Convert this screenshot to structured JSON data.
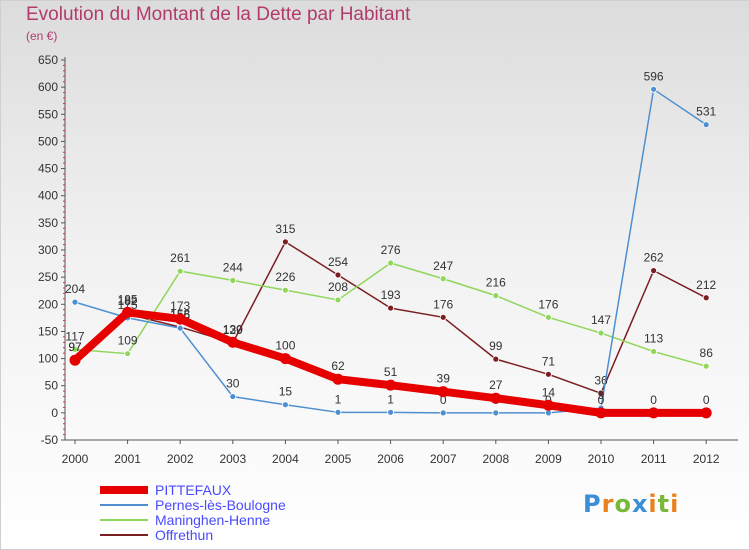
{
  "title": "Evolution du Montant de la Dette par Habitant",
  "subtitle": "(en €)",
  "logo_text": "Proxiti",
  "logo_colors": [
    "#3a8fd6",
    "#e8821e",
    "#7ab83a",
    "#3a8fd6",
    "#e8821e",
    "#7ab83a",
    "#e8821e"
  ],
  "chart_data": {
    "type": "line",
    "title": "Evolution du Montant de la Dette par Habitant",
    "subtitle": "(en €)",
    "x": [
      "2000",
      "2001",
      "2002",
      "2003",
      "2004",
      "2005",
      "2006",
      "2007",
      "2008",
      "2009",
      "2010",
      "2011",
      "2012"
    ],
    "ylim": [
      -50,
      650
    ],
    "yticks": [
      "-50",
      "0",
      "50",
      "100",
      "150",
      "200",
      "250",
      "300",
      "350",
      "400",
      "450",
      "500",
      "550",
      "600",
      "650"
    ],
    "grid": false,
    "legend_position": "bottom-left",
    "series": [
      {
        "name": "Offrethun",
        "color": "#7a1e22",
        "values": [
          97,
          182,
          158,
          129,
          315,
          254,
          193,
          176,
          99,
          71,
          36,
          262,
          212
        ],
        "labels": [
          "97",
          "182",
          "158",
          "129",
          "315",
          "254",
          "193",
          "176",
          "99",
          "71",
          "36",
          "262",
          "212"
        ]
      },
      {
        "name": "Maninghen-Henne",
        "color": "#8fd65a",
        "values": [
          117,
          109,
          261,
          244,
          226,
          208,
          276,
          247,
          216,
          176,
          147,
          113,
          86
        ],
        "labels": [
          "117",
          "109",
          "261",
          "244",
          "226",
          "208",
          "276",
          "247",
          "216",
          "176",
          "147",
          "113",
          "86"
        ]
      },
      {
        "name": "Pernes-lès-Boulogne",
        "color": "#4e8fd0",
        "values": [
          204,
          175,
          156,
          30,
          15,
          1,
          1,
          0,
          0,
          0,
          9,
          596,
          531
        ],
        "labels": [
          "204",
          "175",
          "156",
          "30",
          "15",
          "1",
          "1",
          "0",
          "0",
          "0",
          "9",
          "596",
          "531"
        ]
      },
      {
        "name": "PITTEFAUX",
        "color": "#e60000",
        "values": [
          97,
          185,
          173,
          130,
          100,
          62,
          51,
          39,
          27,
          14,
          0,
          0,
          0
        ],
        "labels": [
          "97",
          "185",
          "173",
          "130",
          "100",
          "62",
          "51",
          "39",
          "27",
          "14",
          "0",
          "0",
          "0"
        ]
      }
    ],
    "legend": [
      "PITTEFAUX",
      "Pernes-lès-Boulogne",
      "Maninghen-Henne",
      "Offrethun"
    ]
  }
}
